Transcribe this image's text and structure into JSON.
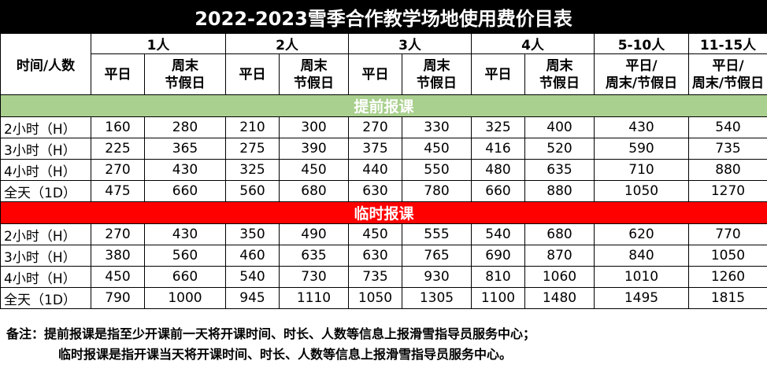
{
  "title": "2022-2023雪季合作教学场地使用费价目表",
  "header": {
    "corner": "时间/人数",
    "groups": [
      "1人",
      "2人",
      "3人",
      "4人",
      "5-10人",
      "11-15人"
    ],
    "sub": {
      "weekday": "平日",
      "weekend_line1": "周末",
      "weekend_line2": "节假日",
      "combined_line1": "平日/",
      "combined_line2": "周末/节假日"
    }
  },
  "sections": [
    {
      "label": "提前报课",
      "color": "#a9d08e",
      "rows": [
        {
          "label": "2小时（H）",
          "values": [
            "160",
            "280",
            "210",
            "300",
            "270",
            "330",
            "325",
            "400",
            "430",
            "540"
          ]
        },
        {
          "label": "3小时（H）",
          "values": [
            "225",
            "365",
            "275",
            "390",
            "375",
            "450",
            "416",
            "520",
            "590",
            "735"
          ]
        },
        {
          "label": "4小时（H）",
          "values": [
            "270",
            "430",
            "325",
            "450",
            "440",
            "550",
            "480",
            "635",
            "710",
            "880"
          ]
        },
        {
          "label": "全天（1D）",
          "values": [
            "475",
            "660",
            "560",
            "680",
            "630",
            "780",
            "660",
            "880",
            "1050",
            "1270"
          ]
        }
      ]
    },
    {
      "label": "临时报课",
      "color": "#ff0000",
      "rows": [
        {
          "label": "2小时（H）",
          "values": [
            "270",
            "430",
            "350",
            "490",
            "450",
            "555",
            "540",
            "680",
            "620",
            "770"
          ]
        },
        {
          "label": "3小时（H）",
          "values": [
            "380",
            "560",
            "460",
            "635",
            "630",
            "765",
            "690",
            "870",
            "840",
            "1050"
          ]
        },
        {
          "label": "4小时（H）",
          "values": [
            "450",
            "660",
            "540",
            "730",
            "735",
            "930",
            "810",
            "1060",
            "1010",
            "1260"
          ]
        },
        {
          "label": "全天（1D）",
          "values": [
            "790",
            "1000",
            "945",
            "1110",
            "1050",
            "1305",
            "1100",
            "1480",
            "1495",
            "1815"
          ]
        }
      ]
    }
  ],
  "notes": {
    "line1": "备注：提前报课是指至少开课前一天将开课时间、时长、人数等信息上报滑雪指导员服务中心；",
    "line2": "临时报课是指开课当天将开课时间、时长、人数等信息上报滑雪指导员服务中心。"
  }
}
